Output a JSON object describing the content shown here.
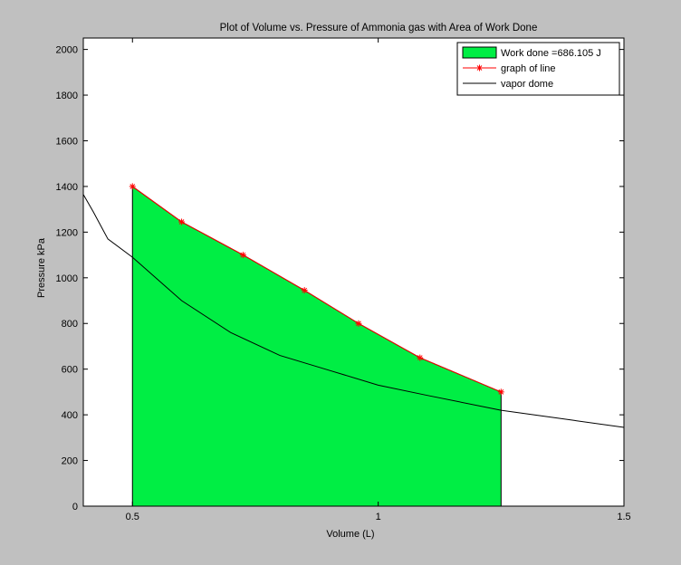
{
  "chart_data": {
    "type": "area",
    "title": "Plot of Volume vs. Pressure of Ammonia gas with Area of Work Done",
    "xlabel": "Volume (L)",
    "ylabel": "Pressure kPa",
    "xlim": [
      0.4,
      1.5
    ],
    "ylim": [
      0,
      2050
    ],
    "xticks": [
      0.5,
      1,
      1.5
    ],
    "xtick_labels": [
      "0.5",
      "1",
      "1.5"
    ],
    "yticks": [
      0,
      200,
      400,
      600,
      800,
      1000,
      1200,
      1400,
      1600,
      1800,
      2000
    ],
    "ytick_labels": [
      "0",
      "200",
      "400",
      "600",
      "800",
      "1000",
      "1200",
      "1400",
      "1600",
      "1800",
      "2000"
    ],
    "grid": false,
    "legend_position": "top-right",
    "series": [
      {
        "name": "Work done =686.105 J",
        "kind": "area",
        "color": "#00ee44",
        "x": [
          0.5,
          0.6,
          0.725,
          0.85,
          0.96,
          1.085,
          1.25
        ],
        "y": [
          1400,
          1245,
          1100,
          945,
          800,
          650,
          500
        ]
      },
      {
        "name": "graph of line",
        "kind": "line-marker",
        "color": "#ff0000",
        "marker": "*",
        "x": [
          0.5,
          0.6,
          0.725,
          0.85,
          0.96,
          1.085,
          1.25
        ],
        "y": [
          1400,
          1245,
          1100,
          945,
          800,
          650,
          500
        ]
      },
      {
        "name": "vapor dome",
        "kind": "line",
        "color": "#000000",
        "x": [
          0.4,
          0.42,
          0.45,
          0.5,
          0.6,
          0.7,
          0.8,
          0.9,
          1.0,
          1.1,
          1.25,
          1.4,
          1.5
        ],
        "y": [
          1365,
          1290,
          1170,
          1090,
          900,
          760,
          660,
          595,
          530,
          485,
          420,
          375,
          345
        ]
      }
    ]
  }
}
